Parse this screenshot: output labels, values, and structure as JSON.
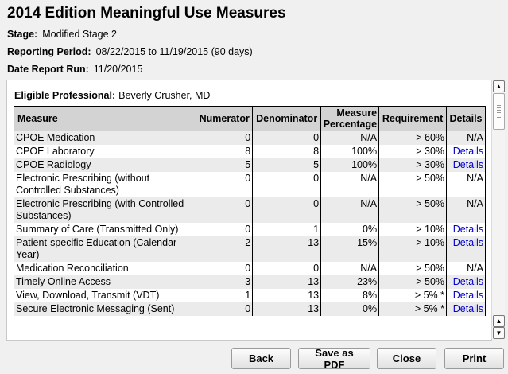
{
  "title": "2014 Edition Meaningful Use Measures",
  "meta": {
    "stage_label": "Stage:",
    "stage_value": "Modified Stage 2",
    "period_label": "Reporting Period:",
    "period_value": "08/22/2015 to 11/19/2015 (90 days)",
    "date_label": "Date Report Run:",
    "date_value": "11/20/2015"
  },
  "eligible_professional": {
    "label": "Eligible Professional:",
    "name": "Beverly Crusher, MD"
  },
  "table": {
    "headers": {
      "measure": "Measure",
      "numerator": "Numerator",
      "denominator": "Denominator",
      "percentage_line1": "Measure",
      "percentage_line2": "Percentage",
      "requirement": "Requirement",
      "details": "Details"
    },
    "rows": [
      {
        "measure": "CPOE Medication",
        "numerator": "0",
        "denominator": "0",
        "percentage": "N/A",
        "requirement": "> 60%",
        "details": "N/A",
        "details_link": false
      },
      {
        "measure": "CPOE Laboratory",
        "numerator": "8",
        "denominator": "8",
        "percentage": "100%",
        "requirement": "> 30%",
        "details": "Details",
        "details_link": true
      },
      {
        "measure": "CPOE Radiology",
        "numerator": "5",
        "denominator": "5",
        "percentage": "100%",
        "requirement": "> 30%",
        "details": "Details",
        "details_link": true
      },
      {
        "measure": "Electronic Prescribing (without Controlled Substances)",
        "numerator": "0",
        "denominator": "0",
        "percentage": "N/A",
        "requirement": "> 50%",
        "details": "N/A",
        "details_link": false
      },
      {
        "measure": "Electronic Prescribing (with Controlled Substances)",
        "numerator": "0",
        "denominator": "0",
        "percentage": "N/A",
        "requirement": "> 50%",
        "details": "N/A",
        "details_link": false
      },
      {
        "measure": "Summary of Care (Transmitted Only)",
        "numerator": "0",
        "denominator": "1",
        "percentage": "0%",
        "requirement": "> 10%",
        "details": "Details",
        "details_link": true
      },
      {
        "measure": "Patient-specific Education (Calendar Year)",
        "numerator": "2",
        "denominator": "13",
        "percentage": "15%",
        "requirement": "> 10%",
        "details": "Details",
        "details_link": true
      },
      {
        "measure": "Medication Reconciliation",
        "numerator": "0",
        "denominator": "0",
        "percentage": "N/A",
        "requirement": "> 50%",
        "details": "N/A",
        "details_link": false
      },
      {
        "measure": "Timely Online Access",
        "numerator": "3",
        "denominator": "13",
        "percentage": "23%",
        "requirement": "> 50%",
        "details": "Details",
        "details_link": true
      },
      {
        "measure": "View, Download, Transmit (VDT)",
        "numerator": "1",
        "denominator": "13",
        "percentage": "8%",
        "requirement": "> 5% *",
        "details": "Details",
        "details_link": true
      },
      {
        "measure": "Secure Electronic Messaging (Sent)",
        "numerator": "0",
        "denominator": "13",
        "percentage": "0%",
        "requirement": "> 5% *",
        "details": "Details",
        "details_link": true
      }
    ]
  },
  "scrollbar": {
    "up_glyph": "▲",
    "down_glyph": "▼"
  },
  "buttons": {
    "back": "Back",
    "save_pdf": "Save as PDF",
    "close": "Close",
    "print": "Print"
  }
}
